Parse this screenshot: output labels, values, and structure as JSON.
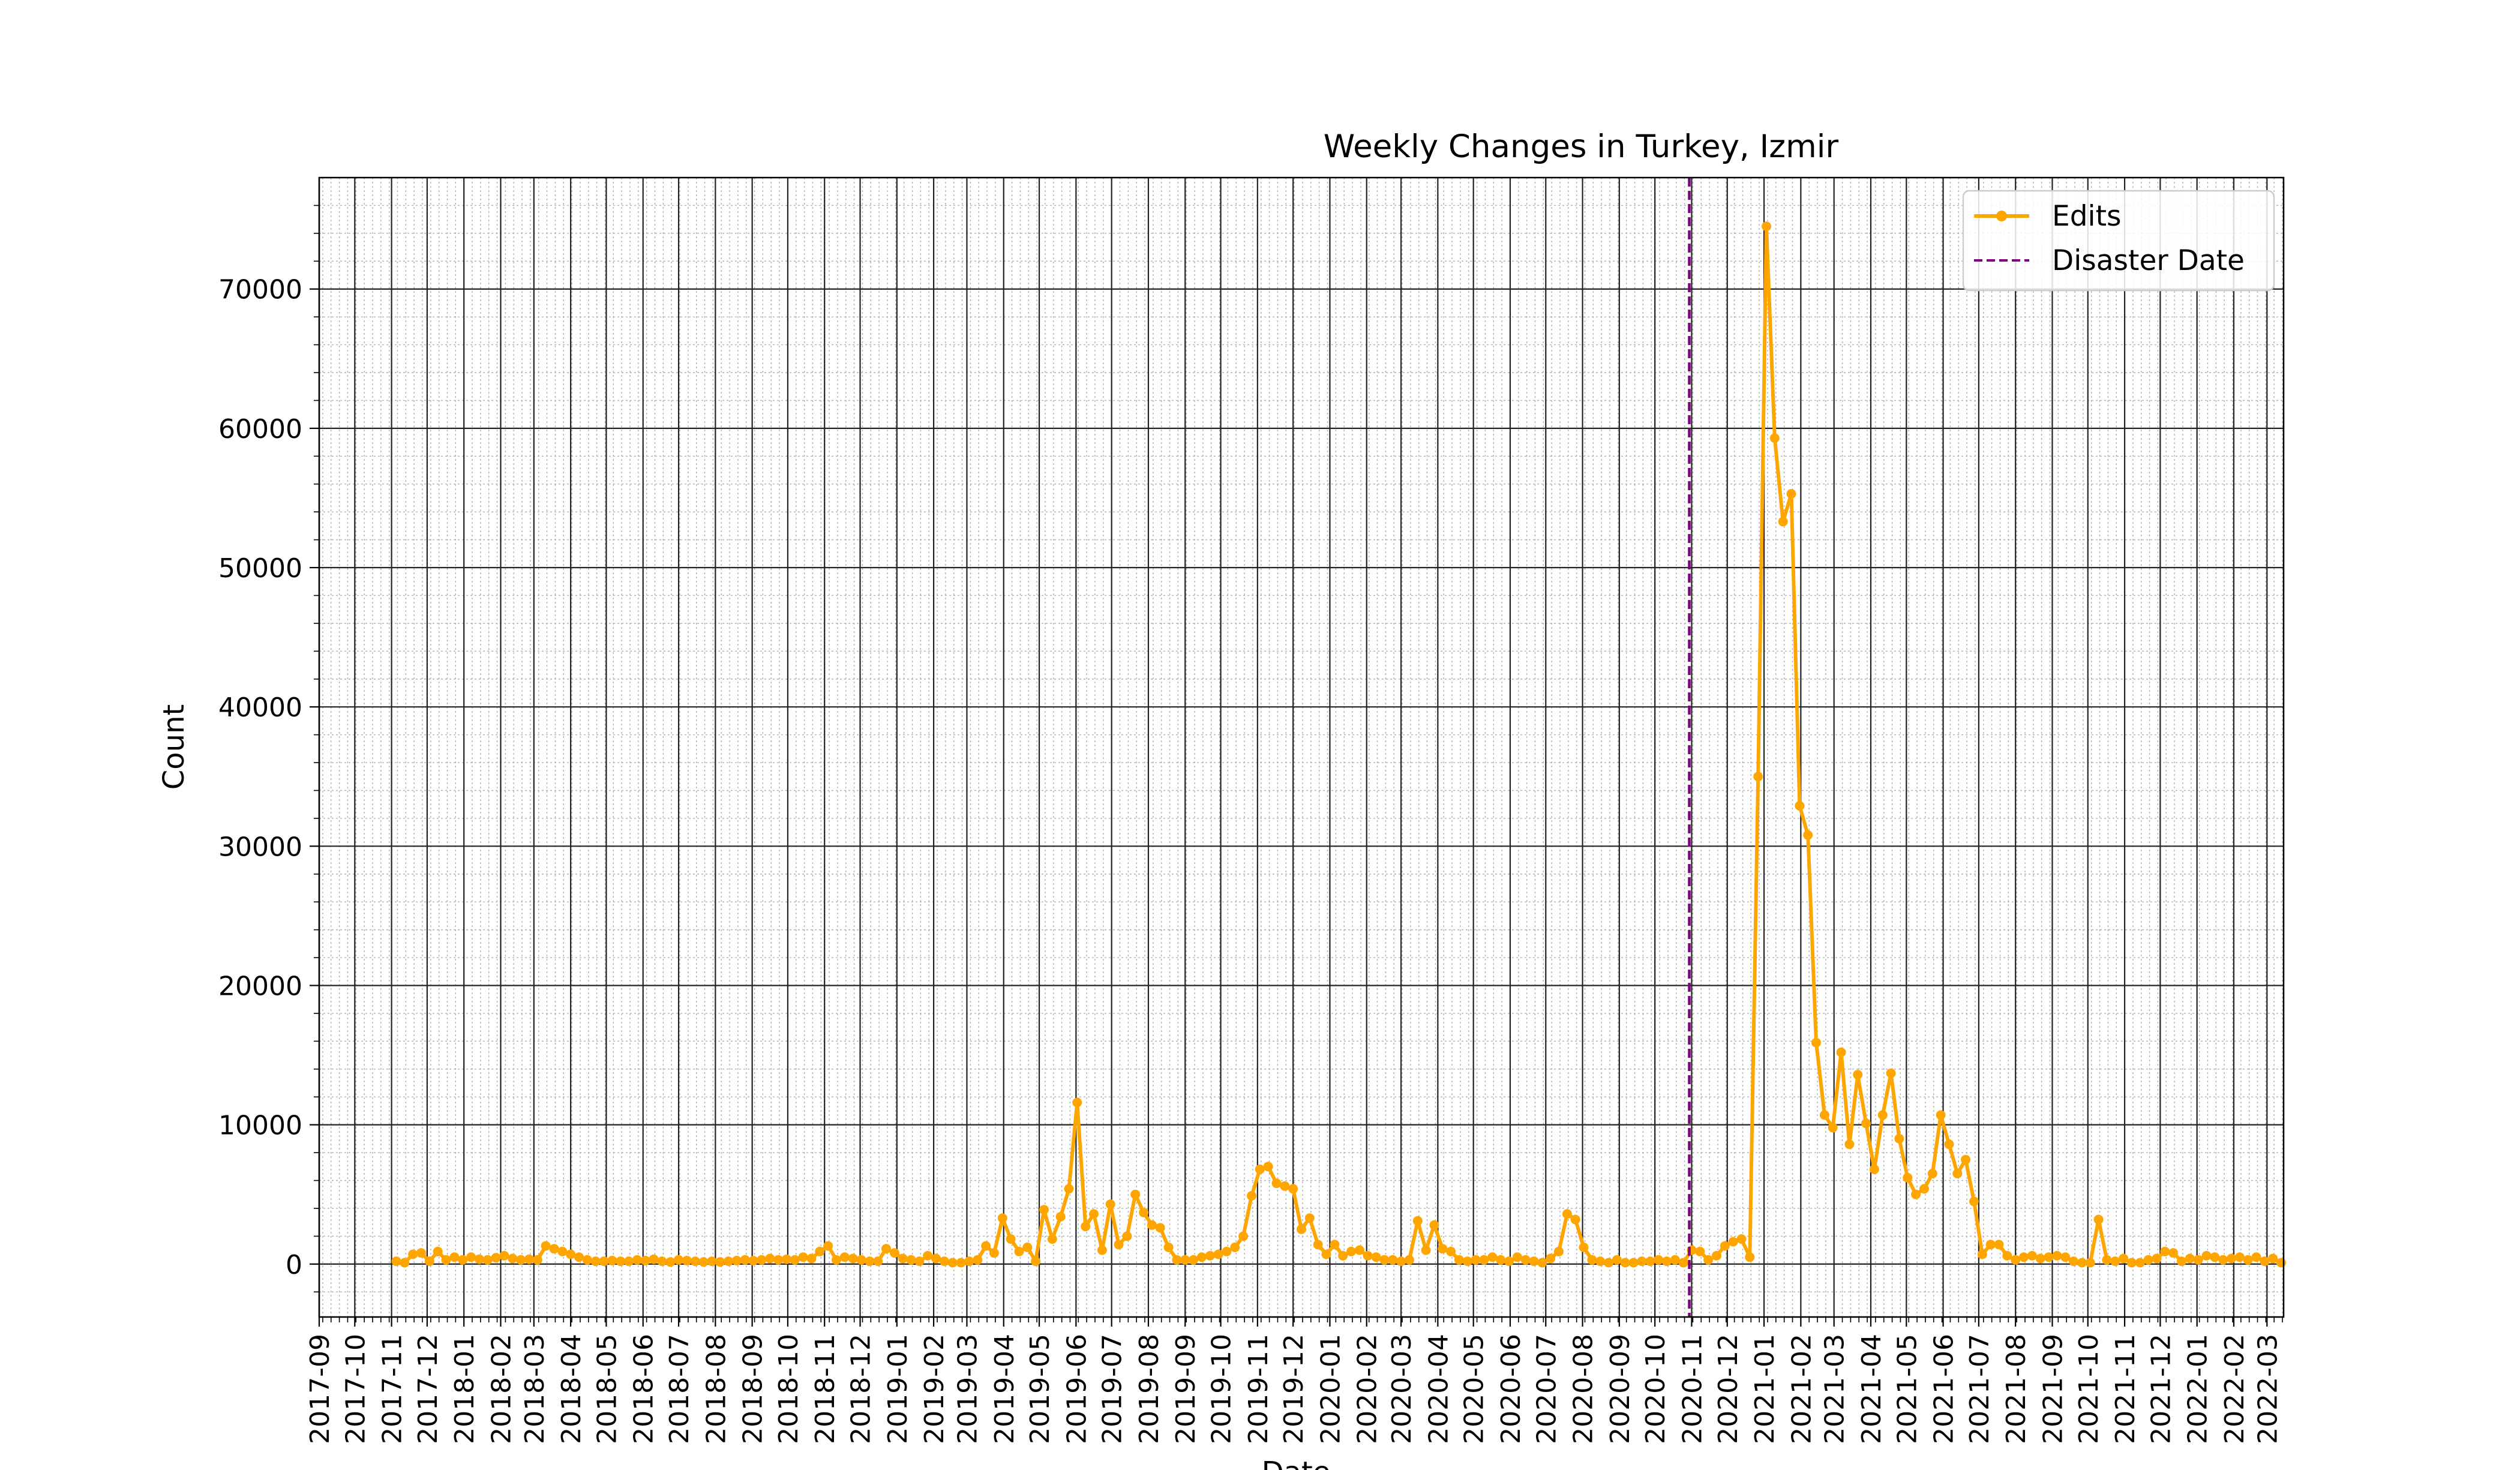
{
  "chart_data": {
    "type": "line",
    "title": "Weekly Changes in Turkey, Izmir",
    "xlabel": "Date",
    "ylabel": "Count",
    "x_axis": "date",
    "xlim": [
      "2017-09-01",
      "2022-03-15"
    ],
    "ylim": [
      -3800,
      78000
    ],
    "yticks": [
      0,
      10000,
      20000,
      30000,
      40000,
      50000,
      60000,
      70000
    ],
    "xticks": [
      "2017-09",
      "2017-10",
      "2017-11",
      "2017-12",
      "2018-01",
      "2018-02",
      "2018-03",
      "2018-04",
      "2018-05",
      "2018-06",
      "2018-07",
      "2018-08",
      "2018-09",
      "2018-10",
      "2018-11",
      "2018-12",
      "2019-01",
      "2019-02",
      "2019-03",
      "2019-04",
      "2019-05",
      "2019-06",
      "2019-07",
      "2019-08",
      "2019-09",
      "2019-10",
      "2019-11",
      "2019-12",
      "2020-01",
      "2020-02",
      "2020-03",
      "2020-04",
      "2020-05",
      "2020-06",
      "2020-07",
      "2020-08",
      "2020-09",
      "2020-10",
      "2020-11",
      "2020-12",
      "2021-01",
      "2021-02",
      "2021-03",
      "2021-04",
      "2021-05",
      "2021-06",
      "2021-07",
      "2021-08",
      "2021-09",
      "2021-10",
      "2021-11",
      "2021-12",
      "2022-01",
      "2022-02",
      "2022-03"
    ],
    "grid": true,
    "legend_position": "top-right",
    "colors": {
      "edits": "#FFA500",
      "disaster": "#800080"
    },
    "legend": [
      {
        "label": "Edits",
        "style": "line-marker"
      },
      {
        "label": "Disaster Date",
        "style": "dashed"
      }
    ],
    "disaster_date": "2020-10-30",
    "series": [
      {
        "name": "Edits",
        "x_start": "2017-11-05",
        "x_step_days": 7,
        "values": [
          200,
          100,
          700,
          800,
          200,
          900,
          300,
          500,
          300,
          500,
          350,
          300,
          450,
          600,
          400,
          300,
          350,
          300,
          1300,
          1100,
          900,
          700,
          500,
          300,
          200,
          200,
          250,
          200,
          200,
          300,
          250,
          350,
          200,
          150,
          300,
          250,
          200,
          150,
          200,
          150,
          200,
          250,
          300,
          250,
          300,
          400,
          300,
          350,
          300,
          500,
          400,
          900,
          1300,
          300,
          500,
          400,
          300,
          200,
          200,
          1100,
          800,
          400,
          300,
          200,
          600,
          400,
          200,
          100,
          100,
          200,
          300,
          1300,
          800,
          3300,
          1800,
          900,
          1200,
          200,
          3900,
          1800,
          3400,
          5400,
          11600,
          2700,
          3600,
          1000,
          4300,
          1400,
          2000,
          5000,
          3700,
          2800,
          2600,
          1200,
          300,
          300,
          300,
          500,
          600,
          700,
          900,
          1200,
          2000,
          4900,
          6800,
          7000,
          5800,
          5600,
          5400,
          2500,
          3300,
          1400,
          700,
          1400,
          600,
          900,
          1000,
          600,
          500,
          300,
          300,
          200,
          300,
          3100,
          1000,
          2800,
          1100,
          900,
          300,
          200,
          300,
          300,
          500,
          300,
          200,
          500,
          300,
          200,
          100,
          400,
          900,
          3600,
          3200,
          1200,
          300,
          200,
          100,
          300,
          100,
          100,
          200,
          200,
          300,
          200,
          300,
          100,
          1000,
          900,
          300,
          600,
          1300,
          1600,
          1800,
          500,
          35000,
          74500,
          59300,
          53300,
          55300,
          32900,
          30800,
          15900,
          10700,
          9800,
          15200,
          8600,
          13600,
          10100,
          6800,
          10700,
          13700,
          9000,
          6200,
          5000,
          5400,
          6500,
          10700,
          8600,
          6500,
          7500,
          4500,
          700,
          1400,
          1400,
          600,
          300,
          500,
          600,
          400,
          500,
          600,
          500,
          200,
          100,
          100,
          3200,
          300,
          200,
          400,
          100,
          100,
          300,
          400,
          900,
          800,
          200,
          400,
          300,
          600,
          500,
          300,
          400,
          500,
          300,
          500,
          200,
          400,
          100
        ]
      }
    ]
  }
}
